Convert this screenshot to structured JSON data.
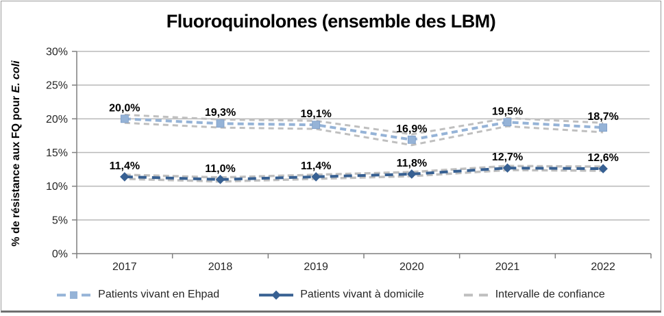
{
  "chart_data": {
    "type": "line",
    "title": "Fluoroquinolones (ensemble des LBM)",
    "ylabel_prefix": "% de résistance aux FQ pour ",
    "ylabel_italic": "E. coli",
    "xlabel": "",
    "categories": [
      "2017",
      "2018",
      "2019",
      "2020",
      "2021",
      "2022"
    ],
    "ylim": [
      0,
      30
    ],
    "grid": true,
    "legend_position": "bottom",
    "y_ticks": [
      {
        "v": 0,
        "label": "0%"
      },
      {
        "v": 5,
        "label": "5%"
      },
      {
        "v": 10,
        "label": "10%"
      },
      {
        "v": 15,
        "label": "15%"
      },
      {
        "v": 20,
        "label": "20%"
      },
      {
        "v": 25,
        "label": "25%"
      },
      {
        "v": 30,
        "label": "30%"
      }
    ],
    "series": [
      {
        "name": "Patients vivant en Ehpad",
        "values": [
          20.0,
          19.3,
          19.1,
          16.9,
          19.5,
          18.7
        ],
        "labels": [
          "20,0%",
          "19,3%",
          "19,1%",
          "16,9%",
          "19,5%",
          "18,7%"
        ],
        "color": "#95B3D7",
        "marker": "square",
        "ci_upper": [
          20.6,
          19.9,
          19.7,
          17.7,
          20.1,
          19.4
        ],
        "ci_lower": [
          19.4,
          18.7,
          18.5,
          16.1,
          18.9,
          18.0
        ]
      },
      {
        "name": "Patients vivant à domicile",
        "values": [
          11.4,
          11.0,
          11.4,
          11.8,
          12.7,
          12.6
        ],
        "labels": [
          "11,4%",
          "11,0%",
          "11,4%",
          "11,8%",
          "12,7%",
          "12,6%"
        ],
        "color": "#376092",
        "marker": "diamond",
        "ci_upper": [
          11.7,
          11.3,
          11.7,
          12.1,
          13.0,
          12.9
        ],
        "ci_lower": [
          11.1,
          10.7,
          11.1,
          11.5,
          12.4,
          12.3
        ]
      }
    ],
    "ci_color": "#BFBFBF",
    "gridline_color": "#B8B8B8",
    "axis_color": "#7F7F7F",
    "tick_label_color": "#262626",
    "data_label_color": "#000000"
  },
  "legend": {
    "items": [
      {
        "label": "Patients vivant en Ehpad"
      },
      {
        "label": "Patients vivant à domicile"
      },
      {
        "label": "Intervalle de confiance"
      }
    ]
  }
}
